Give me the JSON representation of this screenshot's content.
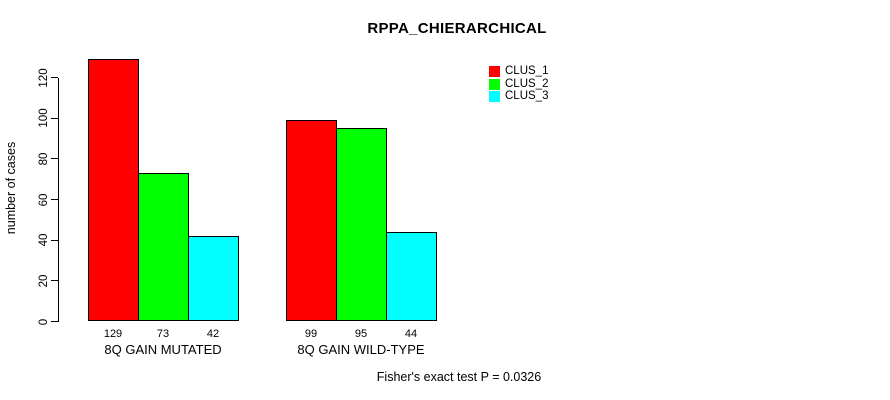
{
  "chart_data": {
    "type": "bar",
    "title": "RPPA_CHIERARCHICAL",
    "xlabel": "",
    "ylabel": "number of cases",
    "categories": [
      "8Q GAIN MUTATED",
      "8Q GAIN WILD-TYPE"
    ],
    "series": [
      {
        "name": "CLUS_1",
        "color": "#ff0000",
        "values": [
          129,
          99
        ]
      },
      {
        "name": "CLUS_2",
        "color": "#00ff00",
        "values": [
          73,
          95
        ]
      },
      {
        "name": "CLUS_3",
        "color": "#00ffff",
        "values": [
          42,
          44
        ]
      }
    ],
    "bar_value_labels": [
      [
        129,
        73,
        42
      ],
      [
        99,
        95,
        44
      ]
    ],
    "yticks": [
      0,
      20,
      40,
      60,
      80,
      100,
      120
    ],
    "ylim": [
      0,
      130
    ],
    "grid": false,
    "legend_position": "top-right",
    "legend_box": false,
    "annotation": "Fisher's exact test P = 0.0326"
  },
  "colors": {
    "background": "#ffffff",
    "axis": "#000000",
    "text": "#000000",
    "bar_border": "#000000"
  }
}
